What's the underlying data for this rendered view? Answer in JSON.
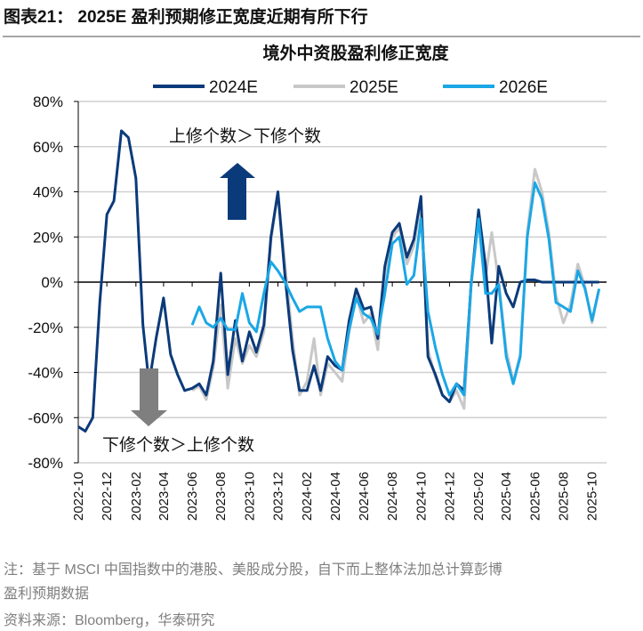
{
  "figure_title": "图表21： 2025E 盈利预期修正宽度近期有所下行",
  "notes": {
    "line1": "注：基于 MSCI 中国指数中的港股、美股成分股，自下而上整体法加总计算彭博",
    "line2": "盈利预期数据",
    "source": "资料来源：Bloomberg，华泰研究"
  },
  "chart_data": {
    "type": "line",
    "title": "境外中资股盈利修正宽度",
    "xlabel": "",
    "ylabel": "",
    "ylim": [
      -80,
      80
    ],
    "y_unit": "%",
    "y_ticks": [
      "80%",
      "60%",
      "40%",
      "20%",
      "0%",
      "-20%",
      "-40%",
      "-60%",
      "-80%"
    ],
    "y_tick_values": [
      80,
      60,
      40,
      20,
      0,
      -20,
      -40,
      -60,
      -80
    ],
    "x_ticks": [
      "2022-10",
      "2022-12",
      "2023-02",
      "2023-04",
      "2023-06",
      "2023-08",
      "2023-10",
      "2023-12",
      "2024-02",
      "2024-04",
      "2024-06",
      "2024-08",
      "2024-10",
      "2024-12",
      "2025-02",
      "2025-04",
      "2025-06",
      "2025-08",
      "2025-10"
    ],
    "xlim": [
      "2022-10-01",
      "2025-11-01"
    ],
    "grid": "horizontal",
    "legend_position": "top",
    "annotations": {
      "upper": "上修个数＞下修个数",
      "lower": "下修个数＞上修个数",
      "upper_arrow_color": "#0b3a7a",
      "lower_arrow_color": "#7f7f7f"
    },
    "x": [
      "2022-10-01",
      "2022-10-16",
      "2022-11-01",
      "2022-11-16",
      "2022-12-01",
      "2022-12-16",
      "2023-01-01",
      "2023-01-16",
      "2023-02-01",
      "2023-02-16",
      "2023-03-01",
      "2023-03-16",
      "2023-04-01",
      "2023-04-16",
      "2023-05-01",
      "2023-05-16",
      "2023-06-01",
      "2023-06-16",
      "2023-07-01",
      "2023-07-16",
      "2023-08-01",
      "2023-08-16",
      "2023-09-01",
      "2023-09-16",
      "2023-10-01",
      "2023-10-16",
      "2023-11-01",
      "2023-11-16",
      "2023-12-01",
      "2023-12-16",
      "2024-01-01",
      "2024-01-16",
      "2024-02-01",
      "2024-02-16",
      "2024-03-01",
      "2024-03-16",
      "2024-04-01",
      "2024-04-16",
      "2024-05-01",
      "2024-05-16",
      "2024-06-01",
      "2024-06-16",
      "2024-07-01",
      "2024-07-16",
      "2024-08-01",
      "2024-08-16",
      "2024-09-01",
      "2024-09-16",
      "2024-10-01",
      "2024-10-16",
      "2024-11-01",
      "2024-11-16",
      "2024-12-01",
      "2024-12-16",
      "2025-01-01",
      "2025-01-16",
      "2025-02-01",
      "2025-02-16",
      "2025-03-01",
      "2025-03-16",
      "2025-04-01",
      "2025-04-16",
      "2025-05-01",
      "2025-05-16",
      "2025-06-01",
      "2025-06-16",
      "2025-07-01",
      "2025-07-16",
      "2025-08-01",
      "2025-08-16",
      "2025-09-01",
      "2025-09-16",
      "2025-10-01",
      "2025-10-16"
    ],
    "series": [
      {
        "name": "2024E",
        "color": "#0b3a7a",
        "values": [
          -64,
          -66,
          -60,
          -9,
          30,
          36,
          67,
          64,
          46,
          -19,
          -45,
          -25,
          -7,
          -32,
          -41,
          -48,
          -47,
          -45,
          -50,
          -35,
          4,
          -41,
          -17,
          -35,
          -22,
          -31,
          -19,
          20,
          40,
          3,
          -30,
          -48,
          -48,
          -37,
          -48,
          -33,
          -37,
          -39,
          -17,
          -3,
          -12,
          -11,
          -25,
          7,
          22,
          26,
          11,
          19,
          38,
          -33,
          -41,
          -50,
          -53,
          -45,
          -48,
          -1,
          32,
          7,
          -27,
          7,
          -5,
          -11,
          0,
          1,
          1,
          0,
          0,
          0,
          0,
          0,
          0,
          0,
          0,
          0
        ]
      },
      {
        "name": "2025E",
        "color": "#c8c8c8",
        "values": [
          null,
          null,
          null,
          null,
          null,
          null,
          null,
          null,
          null,
          null,
          null,
          null,
          null,
          null,
          null,
          null,
          -48,
          -46,
          -52,
          -38,
          -10,
          -47,
          -25,
          -36,
          -28,
          -33,
          -22,
          18,
          40,
          8,
          -25,
          -50,
          -44,
          -25,
          -50,
          -36,
          -40,
          -44,
          -22,
          -6,
          -18,
          -14,
          -30,
          4,
          20,
          24,
          8,
          16,
          35,
          -30,
          -42,
          -50,
          -53,
          -48,
          -56,
          -2,
          30,
          2,
          22,
          0,
          -30,
          -44,
          -32,
          22,
          50,
          40,
          22,
          -6,
          -18,
          -10,
          8,
          -2,
          -18,
          -3
        ]
      },
      {
        "name": "2026E",
        "color": "#1aa7e6",
        "values": [
          null,
          null,
          null,
          null,
          null,
          null,
          null,
          null,
          null,
          null,
          null,
          null,
          null,
          null,
          null,
          null,
          -19,
          -11,
          -18,
          -20,
          -16,
          -21,
          -21,
          -5,
          -18,
          -22,
          -5,
          9,
          5,
          0,
          -7,
          -13,
          -11,
          -11,
          -11,
          -25,
          -35,
          -39,
          -21,
          -7,
          -14,
          -16,
          -23,
          -5,
          17,
          20,
          -1,
          3,
          28,
          -13,
          -29,
          -41,
          -50,
          -45,
          -50,
          -1,
          28,
          -5,
          -5,
          -1,
          -33,
          -45,
          -33,
          20,
          44,
          37,
          19,
          -9,
          -11,
          -13,
          5,
          -3,
          -17,
          -3
        ]
      }
    ]
  }
}
